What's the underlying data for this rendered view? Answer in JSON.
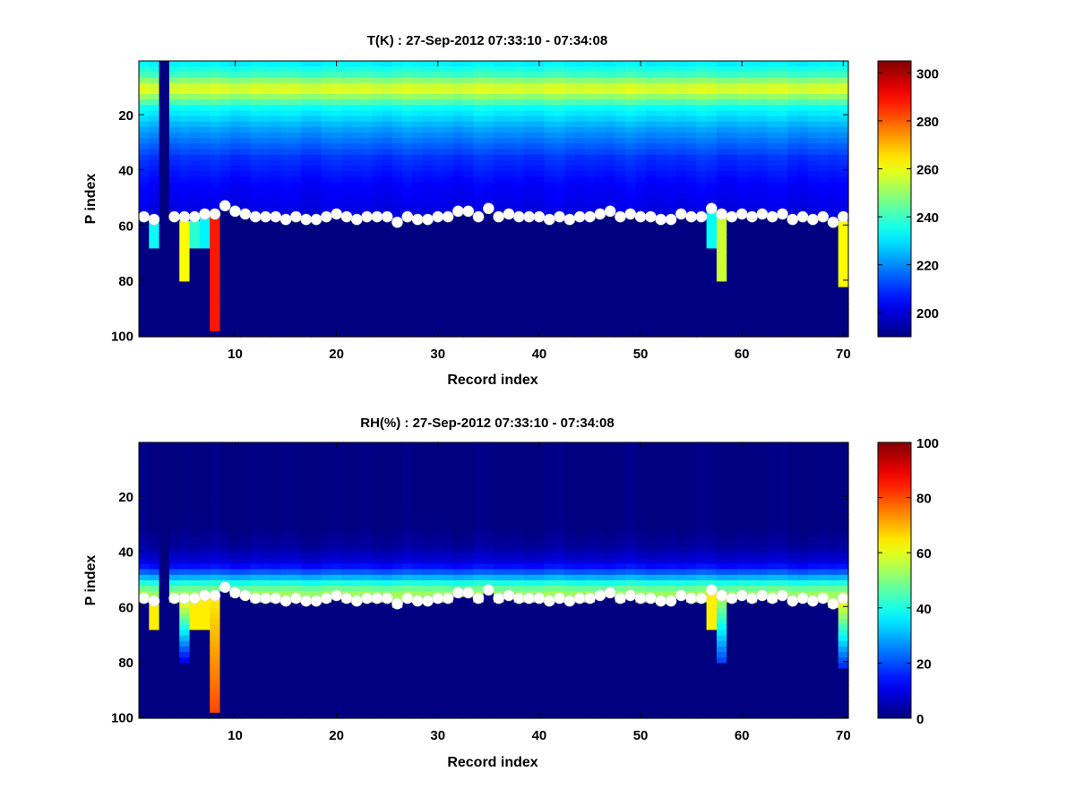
{
  "chart_data": [
    {
      "type": "heatmap",
      "title": "T(K) : 27-Sep-2012 07:33:10 - 07:34:08",
      "xlabel": "Record index",
      "ylabel": "P index",
      "xlim": [
        1,
        70
      ],
      "ylim": [
        100,
        1
      ],
      "y_reversed": true,
      "xticks": [
        10,
        20,
        30,
        40,
        50,
        60,
        70
      ],
      "yticks": [
        20,
        40,
        60,
        80,
        100
      ],
      "colormap": "jet",
      "clim": [
        190,
        305
      ],
      "colorbar_ticks": [
        200,
        220,
        240,
        260,
        280,
        300
      ],
      "grid": false,
      "profile": {
        "p": [
          1,
          5,
          9,
          11,
          13,
          17,
          25,
          35,
          45,
          55
        ],
        "values": [
          232,
          240,
          256,
          258,
          250,
          234,
          222,
          210,
          204,
          201
        ]
      },
      "missing_columns": [
        3
      ],
      "below_marker_fill": 190,
      "surface_extensions": [
        {
          "record": 2,
          "to_p": 67,
          "value": 234
        },
        {
          "record": 5,
          "to_p": 79,
          "value": 262
        },
        {
          "record": 6,
          "to_p": 68,
          "value": 238
        },
        {
          "record": 7,
          "to_p": 67,
          "value": 232
        },
        {
          "record": 8,
          "to_p": 97,
          "value": 288
        },
        {
          "record": 57,
          "to_p": 67,
          "value": 234
        },
        {
          "record": 58,
          "to_p": 80,
          "value": 256
        },
        {
          "record": 70,
          "to_p": 82,
          "value": 262
        }
      ],
      "marker_series": {
        "name": "",
        "color": "#ffffff",
        "x": [
          1,
          2,
          4,
          5,
          6,
          7,
          8,
          9,
          10,
          11,
          12,
          13,
          14,
          15,
          16,
          17,
          18,
          19,
          20,
          21,
          22,
          23,
          24,
          25,
          26,
          27,
          28,
          29,
          30,
          31,
          32,
          33,
          34,
          35,
          36,
          37,
          38,
          39,
          40,
          41,
          42,
          43,
          44,
          45,
          46,
          47,
          48,
          49,
          50,
          51,
          52,
          53,
          54,
          55,
          56,
          57,
          58,
          59,
          60,
          61,
          62,
          63,
          64,
          65,
          66,
          67,
          68,
          69,
          70
        ],
        "y": [
          57,
          58,
          57,
          57,
          57,
          56,
          56,
          53,
          55,
          56,
          57,
          57,
          57,
          58,
          57,
          58,
          58,
          57,
          56,
          57,
          58,
          57,
          57,
          57,
          59,
          57,
          58,
          58,
          57,
          57,
          55,
          55,
          57,
          54,
          57,
          56,
          57,
          57,
          57,
          58,
          57,
          58,
          57,
          57,
          56,
          55,
          57,
          56,
          57,
          57,
          58,
          58,
          56,
          57,
          57,
          54,
          56,
          57,
          56,
          57,
          56,
          57,
          56,
          58,
          57,
          58,
          57,
          59,
          57
        ]
      }
    },
    {
      "type": "heatmap",
      "title": "RH(%) : 27-Sep-2012 07:33:10 - 07:34:08",
      "xlabel": "Record index",
      "ylabel": "P index",
      "xlim": [
        1,
        70
      ],
      "ylim": [
        100,
        1
      ],
      "y_reversed": true,
      "xticks": [
        10,
        20,
        30,
        40,
        50,
        60,
        70
      ],
      "yticks": [
        20,
        40,
        60,
        80,
        100
      ],
      "colormap": "jet",
      "clim": [
        0,
        100
      ],
      "colorbar_ticks": [
        0,
        20,
        40,
        60,
        80,
        100
      ],
      "grid": false,
      "profile": {
        "p": [
          1,
          30,
          38,
          44,
          48,
          51,
          54,
          57
        ],
        "values": [
          0,
          0,
          3,
          10,
          25,
          40,
          52,
          55
        ]
      },
      "missing_columns": [
        3
      ],
      "below_marker_fill": 0,
      "surface_extensions": [
        {
          "record": 2,
          "to_p": 67,
          "value": 64
        },
        {
          "record": 5,
          "to_p": 79,
          "value": 12,
          "top_value": 64
        },
        {
          "record": 6,
          "to_p": 68,
          "value": 64
        },
        {
          "record": 7,
          "to_p": 67,
          "value": 64
        },
        {
          "record": 8,
          "to_p": 97,
          "value": 80,
          "top_value": 64
        },
        {
          "record": 57,
          "to_p": 67,
          "value": 64
        },
        {
          "record": 58,
          "to_p": 80,
          "value": 18,
          "top_value": 55
        },
        {
          "record": 70,
          "to_p": 82,
          "value": 15,
          "top_value": 64
        }
      ],
      "marker_series": {
        "name": "",
        "color": "#ffffff",
        "x": [
          1,
          2,
          4,
          5,
          6,
          7,
          8,
          9,
          10,
          11,
          12,
          13,
          14,
          15,
          16,
          17,
          18,
          19,
          20,
          21,
          22,
          23,
          24,
          25,
          26,
          27,
          28,
          29,
          30,
          31,
          32,
          33,
          34,
          35,
          36,
          37,
          38,
          39,
          40,
          41,
          42,
          43,
          44,
          45,
          46,
          47,
          48,
          49,
          50,
          51,
          52,
          53,
          54,
          55,
          56,
          57,
          58,
          59,
          60,
          61,
          62,
          63,
          64,
          65,
          66,
          67,
          68,
          69,
          70
        ],
        "y": [
          57,
          58,
          57,
          57,
          57,
          56,
          56,
          53,
          55,
          56,
          57,
          57,
          57,
          58,
          57,
          58,
          58,
          57,
          56,
          57,
          58,
          57,
          57,
          57,
          59,
          57,
          58,
          58,
          57,
          57,
          55,
          55,
          57,
          54,
          57,
          56,
          57,
          57,
          57,
          58,
          57,
          58,
          57,
          57,
          56,
          55,
          57,
          56,
          57,
          57,
          58,
          58,
          56,
          57,
          57,
          54,
          56,
          57,
          56,
          57,
          56,
          57,
          56,
          58,
          57,
          58,
          57,
          59,
          57
        ]
      }
    }
  ]
}
